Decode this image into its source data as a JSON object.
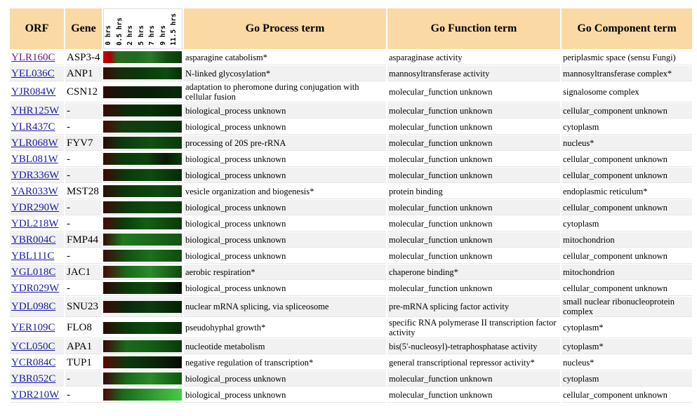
{
  "table": {
    "header": [
      "ORF",
      "Gene",
      "Go Process term",
      "Go Function term",
      "Go Component term"
    ],
    "time_labels": [
      "0 hrs",
      "0.5 hrs",
      "2 hrs",
      "5 hrs",
      "7 hrs",
      "9 hrs",
      "11.5 hrs"
    ],
    "rows": [
      [
        "YLR160C",
        "ASP3-4",
        "asparagine catabolism*",
        "asparaginase activity",
        "periplasmic space (sensu Fungi)"
      ],
      [
        "YEL036C",
        "ANP1",
        "N-linked glycosylation*",
        "mannosyltransferase activity",
        "mannosyltransferase complex*"
      ],
      [
        "YJR084W",
        "CSN12",
        "adaptation to pheromone during conjugation with cellular fusion",
        "molecular_function unknown",
        "signalosome complex"
      ],
      [
        "YHR125W",
        "-",
        "biological_process unknown",
        "molecular_function unknown",
        "cellular_component unknown"
      ],
      [
        "YLR437C",
        "-",
        "biological_process unknown",
        "molecular_function unknown",
        "cytoplasm"
      ],
      [
        "YLR068W",
        "FYV7",
        "processing of 20S pre-rRNA",
        "molecular_function unknown",
        "nucleus*"
      ],
      [
        "YBL081W",
        "-",
        "biological_process unknown",
        "molecular_function unknown",
        "cellular_component unknown"
      ],
      [
        "YDR336W",
        "-",
        "biological_process unknown",
        "molecular_function unknown",
        "cellular_component unknown"
      ],
      [
        "YAR033W",
        "MST28",
        "vesicle organization and biogenesis*",
        "protein binding",
        "endoplasmic reticulum*"
      ],
      [
        "YDR290W",
        "-",
        "biological_process unknown",
        "molecular_function unknown",
        "cellular_component unknown"
      ],
      [
        "YDL218W",
        "-",
        "biological_process unknown",
        "molecular_function unknown",
        "cytoplasm"
      ],
      [
        "YBR004C",
        "FMP44",
        "biological_process unknown",
        "molecular_function unknown",
        "mitochondrion"
      ],
      [
        "YBL111C",
        "-",
        "biological_process unknown",
        "molecular_function unknown",
        "cellular_component unknown"
      ],
      [
        "YGL018C",
        "JAC1",
        "aerobic respiration*",
        "chaperone binding*",
        "mitochondrion"
      ],
      [
        "YDR029W",
        "-",
        "biological_process unknown",
        "molecular_function unknown",
        "cellular_component unknown"
      ],
      [
        "YDL098C",
        "SNU23",
        "nuclear mRNA splicing, via spliceosome",
        "pre-mRNA splicing factor activity",
        "small nuclear ribonucleoprotein complex"
      ],
      [
        "YER109C",
        "FLO8",
        "pseudohyphal growth*",
        "specific RNA polymerase II transcription factor activity",
        "cytoplasm*"
      ],
      [
        "YCL050C",
        "APA1",
        "nucleotide metabolism",
        "bis(5'-nucleosyl)-tetraphosphatase activity",
        "cytoplasm*"
      ],
      [
        "YCR084C",
        "TUP1",
        "negative regulation of transcription*",
        "general transcriptional repressor activity*",
        "nucleus*"
      ],
      [
        "YBR052C",
        "-",
        "biological_process unknown",
        "molecular_function unknown",
        "cytoplasm"
      ],
      [
        "YDR210W",
        "-",
        "biological_process unknown",
        "molecular_function unknown",
        "cellular_component unknown"
      ]
    ]
  }
}
